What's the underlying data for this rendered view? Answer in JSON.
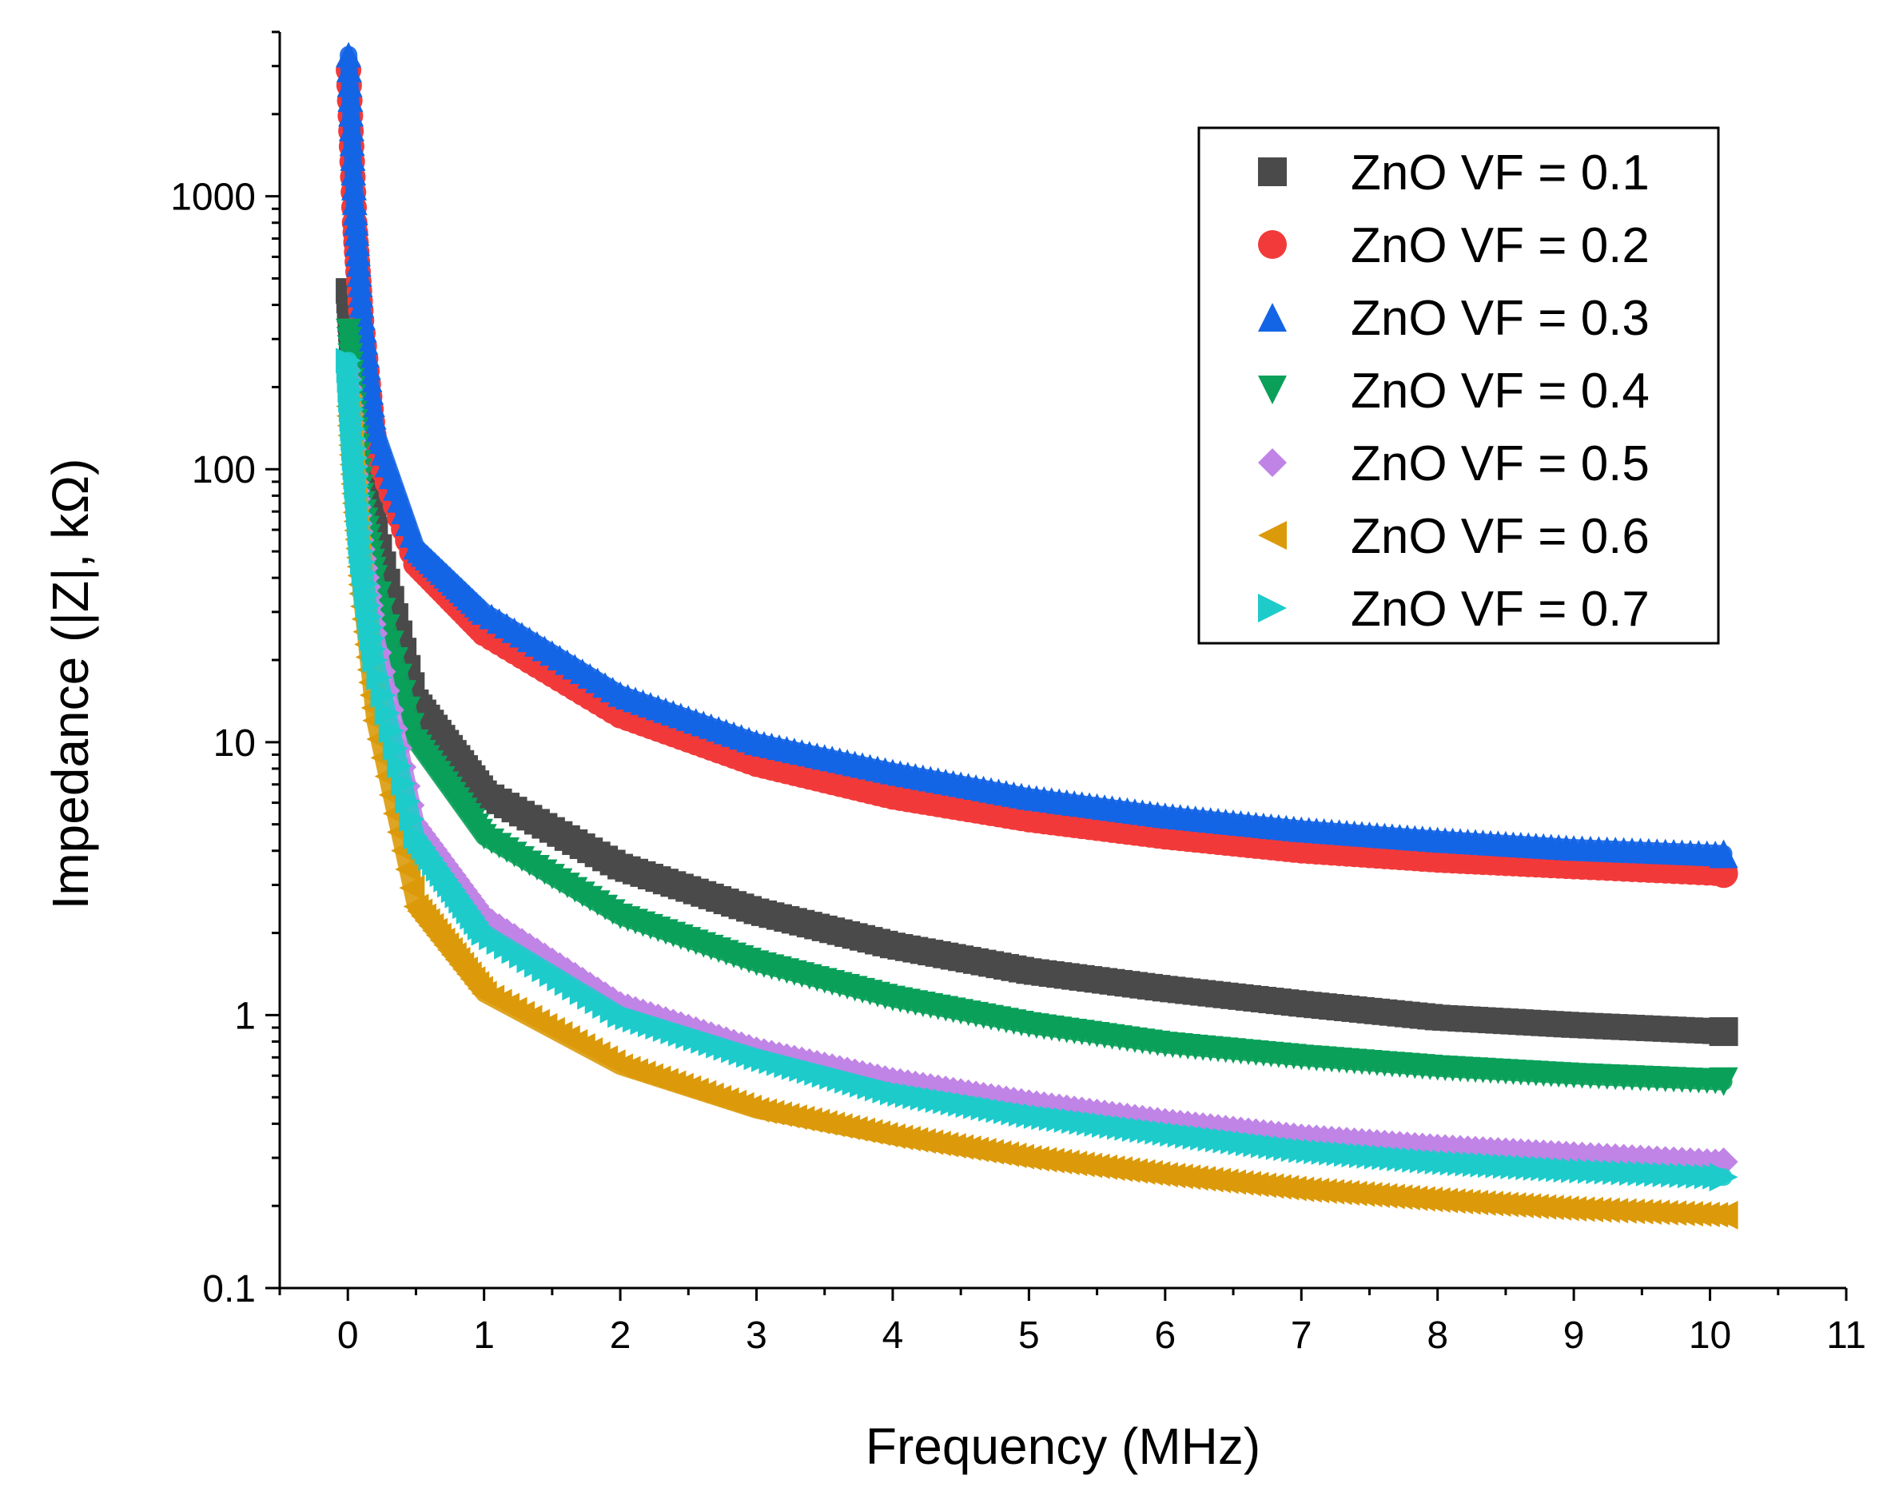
{
  "chart_data": {
    "type": "scatter",
    "title": "",
    "xlabel": "Frequency (MHz)",
    "ylabel": "Impedance (|Z|, kΩ)",
    "xlim": [
      -0.5,
      11
    ],
    "ylim": [
      0.1,
      4000
    ],
    "yscale": "log",
    "grid": false,
    "legend_position": "top-right",
    "x_ticks": [
      {
        "value": 0,
        "label": "0"
      },
      {
        "value": 1,
        "label": "1"
      },
      {
        "value": 2,
        "label": "2"
      },
      {
        "value": 3,
        "label": "3"
      },
      {
        "value": 4,
        "label": "4"
      },
      {
        "value": 5,
        "label": "5"
      },
      {
        "value": 6,
        "label": "6"
      },
      {
        "value": 7,
        "label": "7"
      },
      {
        "value": 8,
        "label": "8"
      },
      {
        "value": 9,
        "label": "9"
      },
      {
        "value": 10,
        "label": "10"
      },
      {
        "value": 11,
        "label": "11"
      }
    ],
    "y_ticks": [
      {
        "value": 0.1,
        "label": "0.1"
      },
      {
        "value": 1,
        "label": "1"
      },
      {
        "value": 10,
        "label": "10"
      },
      {
        "value": 100,
        "label": "100"
      },
      {
        "value": 1000,
        "label": "1000"
      }
    ],
    "x": [
      0.005,
      0.05,
      0.1,
      0.2,
      0.5,
      1,
      2,
      3,
      4,
      5,
      6,
      7,
      8,
      9,
      10.1
    ],
    "series": [
      {
        "name": "ZnO VF = 0.1",
        "marker": "square",
        "color": "#4a4a4a",
        "values": [
          450,
          200,
          100,
          60,
          14,
          6.5,
          3.5,
          2.4,
          1.8,
          1.45,
          1.25,
          1.1,
          0.98,
          0.92,
          0.87
        ]
      },
      {
        "name": "ZnO VF = 0.2",
        "marker": "circle",
        "color": "#f23a3a",
        "values": [
          2900,
          800,
          350,
          120,
          45,
          25,
          12.5,
          8.3,
          6.3,
          5.2,
          4.5,
          4.0,
          3.7,
          3.5,
          3.3
        ]
      },
      {
        "name": "ZnO VF = 0.3",
        "marker": "triangle-up",
        "color": "#1464e6",
        "values": [
          3300,
          950,
          400,
          140,
          52,
          30,
          15,
          10,
          7.8,
          6.3,
          5.4,
          4.8,
          4.4,
          4.1,
          3.9
        ]
      },
      {
        "name": "ZnO VF = 0.4",
        "marker": "triangle-down",
        "color": "#0aa05a",
        "values": [
          320,
          160,
          80,
          40,
          10,
          4.5,
          2.3,
          1.55,
          1.15,
          0.92,
          0.78,
          0.7,
          0.64,
          0.6,
          0.57
        ]
      },
      {
        "name": "ZnO VF = 0.5",
        "marker": "diamond",
        "color": "#c084e6",
        "values": [
          230,
          110,
          55,
          25,
          5,
          2.3,
          1.1,
          0.75,
          0.58,
          0.48,
          0.41,
          0.36,
          0.33,
          0.31,
          0.29
        ]
      },
      {
        "name": "ZnO VF = 0.6",
        "marker": "triangle-left",
        "color": "#db9a0a",
        "values": [
          170,
          75,
          35,
          12,
          2.5,
          1.2,
          0.65,
          0.45,
          0.36,
          0.3,
          0.26,
          0.23,
          0.21,
          0.195,
          0.185
        ]
      },
      {
        "name": "ZnO VF = 0.7",
        "marker": "triangle-right",
        "color": "#1ecbcb",
        "values": [
          250,
          110,
          50,
          20,
          4.5,
          2.0,
          1.0,
          0.7,
          0.52,
          0.43,
          0.37,
          0.32,
          0.29,
          0.27,
          0.255
        ]
      }
    ]
  }
}
